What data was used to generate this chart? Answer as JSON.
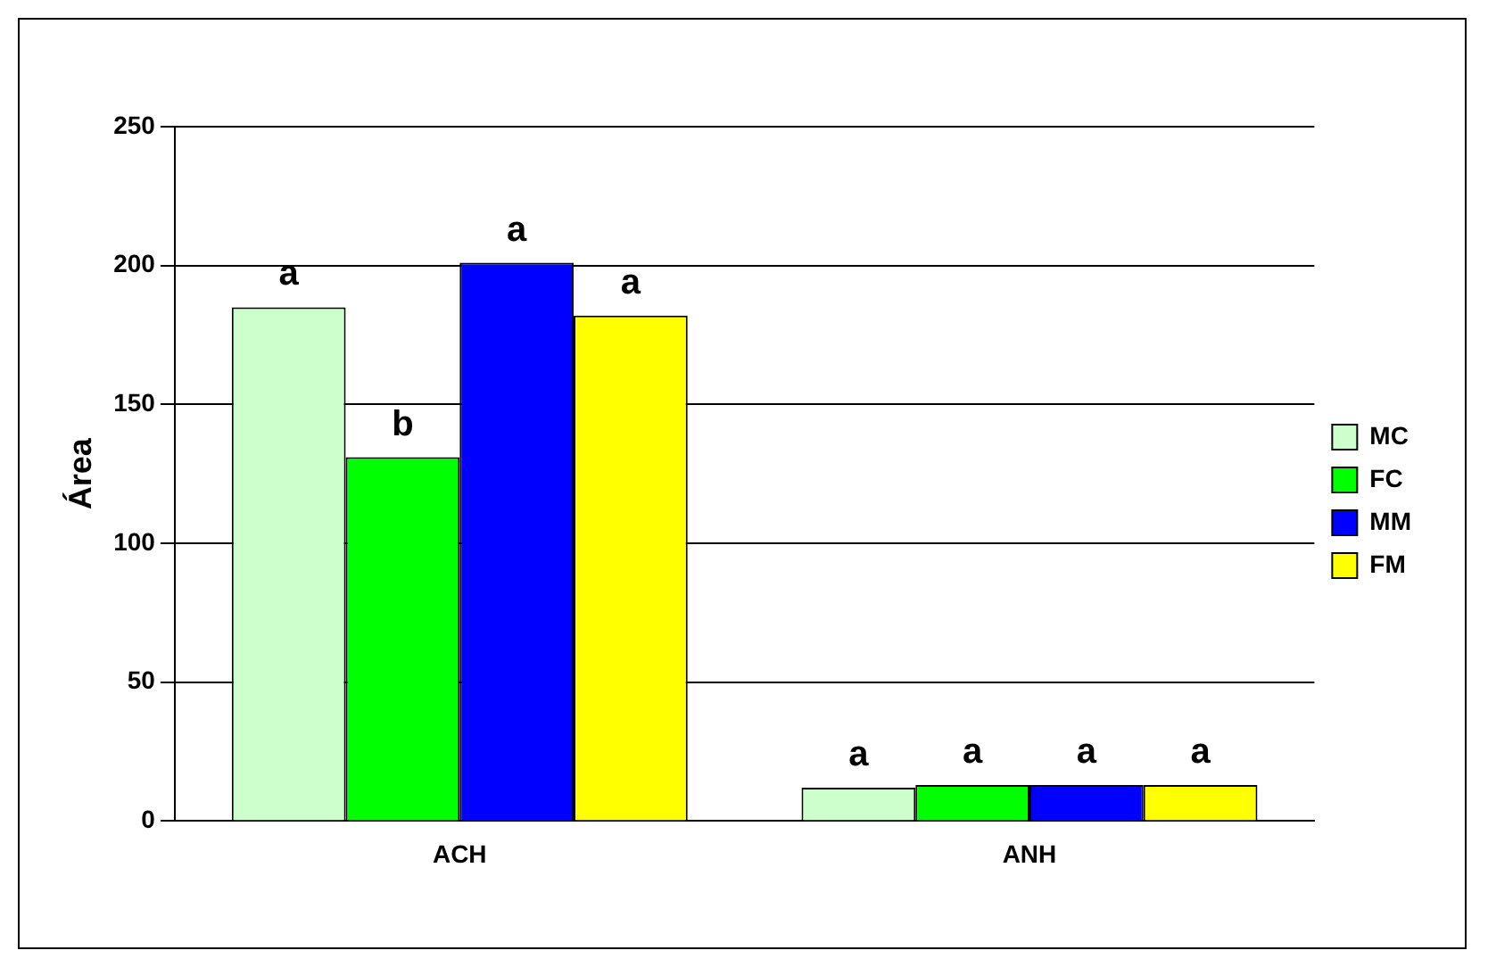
{
  "chart_data": {
    "type": "bar",
    "ylabel": "Área",
    "categories": [
      "ACH",
      "ANH"
    ],
    "series": [
      {
        "name": "MC",
        "color": "#ccffcc",
        "values": [
          185,
          12
        ],
        "value_labels": [
          "a",
          "a"
        ]
      },
      {
        "name": "FC",
        "color": "#00ff00",
        "values": [
          131,
          13
        ],
        "value_labels": [
          "b",
          "a"
        ]
      },
      {
        "name": "MM",
        "color": "#0000ff",
        "values": [
          201,
          13
        ],
        "value_labels": [
          "a",
          "a"
        ]
      },
      {
        "name": "FM",
        "color": "#ffff00",
        "values": [
          182,
          13
        ],
        "value_labels": [
          "a",
          "a"
        ]
      }
    ],
    "ylim": [
      0,
      250
    ],
    "yticks": [
      0,
      50,
      100,
      150,
      200,
      250
    ],
    "grid": "y",
    "legend": "right"
  }
}
